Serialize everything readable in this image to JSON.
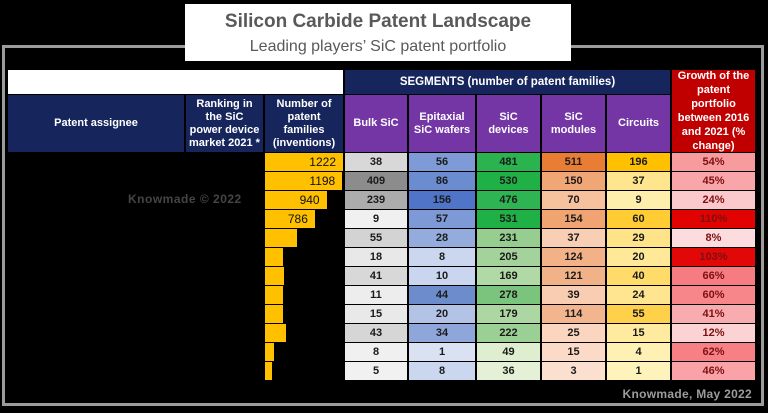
{
  "title": {
    "main": "Silicon Carbide Patent Landscape",
    "subtitle": "Leading players’ SiC patent portfolio"
  },
  "watermarks": {
    "center": "Knowmade © 2022",
    "bottom_right": "Knowmade, May 2022"
  },
  "header": {
    "segments_label": "SEGMENTS (number of patent families)",
    "growth_label": "Growth of the patent portfolio between 2016 and 2021 (% change)",
    "assignee": "Patent assignee",
    "ranking": "Ranking in the SiC power device market 2021 *",
    "families": "Number of patent families (inventions)",
    "segments": [
      "Bulk SiC",
      "Epitaxial SiC wafers",
      "SiC devices",
      "SiC modules",
      "Circuits"
    ]
  },
  "colors": {
    "navy_header": "#16265c",
    "purple_header": "#7436a4",
    "red_header": "#c00000",
    "gold_bar": "#ffc000",
    "frame_gray": "#9b9b9b",
    "title_text": "#595959",
    "growth_text": "#7d1010"
  },
  "table": {
    "rows": [
      {
        "families": "1222",
        "bar": 1.0,
        "cells": [
          {
            "v": "38",
            "bg": "#d8d8d8"
          },
          {
            "v": "56",
            "bg": "#7e9ad7"
          },
          {
            "v": "481",
            "bg": "#2bb350"
          },
          {
            "v": "511",
            "bg": "#e97d33"
          },
          {
            "v": "196",
            "bg": "#ffc000"
          },
          {
            "v": "54%",
            "bg": "#f89b9f"
          }
        ]
      },
      {
        "families": "1198",
        "bar": 0.99,
        "cells": [
          {
            "v": "409",
            "bg": "#8c8c8c"
          },
          {
            "v": "86",
            "bg": "#6b8dd0"
          },
          {
            "v": "530",
            "bg": "#20b146"
          },
          {
            "v": "150",
            "bg": "#f0a775"
          },
          {
            "v": "37",
            "bg": "#ffe68e"
          },
          {
            "v": "45%",
            "bg": "#f9a6aa"
          }
        ]
      },
      {
        "families": "940",
        "bar": 0.79,
        "cells": [
          {
            "v": "239",
            "bg": "#acacac"
          },
          {
            "v": "156",
            "bg": "#4f74c8"
          },
          {
            "v": "476",
            "bg": "#2eb452"
          },
          {
            "v": "70",
            "bg": "#f6c29e"
          },
          {
            "v": "9",
            "bg": "#ffefac"
          },
          {
            "v": "24%",
            "bg": "#fbc8cb"
          }
        ]
      },
      {
        "families": "786",
        "bar": 0.64,
        "cells": [
          {
            "v": "9",
            "bg": "#f0f0f0"
          },
          {
            "v": "57",
            "bg": "#7d99d6"
          },
          {
            "v": "531",
            "bg": "#1fb145"
          },
          {
            "v": "154",
            "bg": "#efa472"
          },
          {
            "v": "60",
            "bg": "#ffcd33"
          },
          {
            "v": "110%",
            "bg": "#e10202"
          }
        ]
      },
      {
        "families": "",
        "bar": 0.41,
        "cells": [
          {
            "v": "55",
            "bg": "#d3d3d3"
          },
          {
            "v": "28",
            "bg": "#93acdd"
          },
          {
            "v": "231",
            "bg": "#96ce90"
          },
          {
            "v": "37",
            "bg": "#f8ceb4"
          },
          {
            "v": "29",
            "bg": "#ffe389"
          },
          {
            "v": "8%",
            "bg": "#fcdcde"
          }
        ]
      },
      {
        "families": "",
        "bar": 0.23,
        "cells": [
          {
            "v": "18",
            "bg": "#e8e8e8"
          },
          {
            "v": "8",
            "bg": "#cbd7ef"
          },
          {
            "v": "205",
            "bg": "#a3d39a"
          },
          {
            "v": "124",
            "bg": "#f2b186"
          },
          {
            "v": "20",
            "bg": "#ffe897"
          },
          {
            "v": "103%",
            "bg": "#e20808"
          }
        ]
      },
      {
        "families": "",
        "bar": 0.24,
        "cells": [
          {
            "v": "41",
            "bg": "#d8d8d8"
          },
          {
            "v": "10",
            "bg": "#cad6ef"
          },
          {
            "v": "169",
            "bg": "#b1d9a6"
          },
          {
            "v": "121",
            "bg": "#f2b288"
          },
          {
            "v": "40",
            "bg": "#ffdc6a"
          },
          {
            "v": "66%",
            "bg": "#f67c81"
          }
        ]
      },
      {
        "families": "",
        "bar": 0.23,
        "cells": [
          {
            "v": "11",
            "bg": "#ededed"
          },
          {
            "v": "44",
            "bg": "#6c8ccb"
          },
          {
            "v": "278",
            "bg": "#7ac47d"
          },
          {
            "v": "39",
            "bg": "#f8cdb2"
          },
          {
            "v": "24",
            "bg": "#ffe590"
          },
          {
            "v": "60%",
            "bg": "#f7868b"
          }
        ]
      },
      {
        "families": "",
        "bar": 0.23,
        "cells": [
          {
            "v": "15",
            "bg": "#e9e9e9"
          },
          {
            "v": "20",
            "bg": "#b3c3e6"
          },
          {
            "v": "179",
            "bg": "#acd7a2"
          },
          {
            "v": "114",
            "bg": "#f3b58d"
          },
          {
            "v": "55",
            "bg": "#ffd04a"
          },
          {
            "v": "41%",
            "bg": "#f9acb0"
          }
        ]
      },
      {
        "families": "",
        "bar": 0.27,
        "cells": [
          {
            "v": "43",
            "bg": "#d6d6d6"
          },
          {
            "v": "34",
            "bg": "#8fa6da"
          },
          {
            "v": "222",
            "bg": "#9ad094"
          },
          {
            "v": "25",
            "bg": "#fad5bf"
          },
          {
            "v": "15",
            "bg": "#ffeba0"
          },
          {
            "v": "12%",
            "bg": "#fbd3d5"
          }
        ]
      },
      {
        "families": "",
        "bar": 0.11,
        "cells": [
          {
            "v": "8",
            "bg": "#f0f0f0"
          },
          {
            "v": "1",
            "bg": "#d9e1f2"
          },
          {
            "v": "49",
            "bg": "#deeece"
          },
          {
            "v": "15",
            "bg": "#fbdac7"
          },
          {
            "v": "4",
            "bg": "#fff0b3"
          },
          {
            "v": "62%",
            "bg": "#f68085"
          }
        ]
      },
      {
        "families": "",
        "bar": 0.09,
        "cells": [
          {
            "v": "5",
            "bg": "#f1f1f1"
          },
          {
            "v": "8",
            "bg": "#cbd7ef"
          },
          {
            "v": "36",
            "bg": "#e4f1d6"
          },
          {
            "v": "3",
            "bg": "#fce0cf"
          },
          {
            "v": "1",
            "bg": "#fff3bc"
          },
          {
            "v": "46%",
            "bg": "#f9a3a8"
          }
        ]
      }
    ]
  },
  "chart_data": {
    "type": "table",
    "title": "Silicon Carbide Patent Landscape",
    "subtitle": "Leading players’ SiC patent portfolio",
    "notes": "Patent assignee names, rankings and most family counts are redacted (blacked out) in the image",
    "columns": [
      "Patent assignee",
      "Ranking in the SiC power device market 2021 *",
      "Number of patent families (inventions)",
      "Bulk SiC",
      "Epitaxial SiC wafers",
      "SiC devices",
      "SiC modules",
      "Circuits",
      "Growth of the patent portfolio between 2016 and 2021 (% change)"
    ],
    "number_of_patent_families": [
      1222,
      1198,
      940,
      786,
      null,
      null,
      null,
      null,
      null,
      null,
      null,
      null
    ],
    "series": [
      {
        "name": "Bulk SiC",
        "values": [
          38,
          409,
          239,
          9,
          55,
          18,
          41,
          11,
          15,
          43,
          8,
          5
        ]
      },
      {
        "name": "Epitaxial SiC wafers",
        "values": [
          56,
          86,
          156,
          57,
          28,
          8,
          10,
          44,
          20,
          34,
          1,
          8
        ]
      },
      {
        "name": "SiC devices",
        "values": [
          481,
          530,
          476,
          531,
          231,
          205,
          169,
          278,
          179,
          222,
          49,
          36
        ]
      },
      {
        "name": "SiC modules",
        "values": [
          511,
          150,
          70,
          154,
          37,
          124,
          121,
          39,
          114,
          25,
          15,
          3
        ]
      },
      {
        "name": "Circuits",
        "values": [
          196,
          37,
          9,
          60,
          29,
          20,
          40,
          24,
          55,
          15,
          4,
          1
        ]
      },
      {
        "name": "Growth 2016-2021 (% change)",
        "values": [
          "54%",
          "45%",
          "24%",
          "110%",
          "8%",
          "103%",
          "66%",
          "60%",
          "41%",
          "12%",
          "62%",
          "46%"
        ]
      }
    ]
  }
}
